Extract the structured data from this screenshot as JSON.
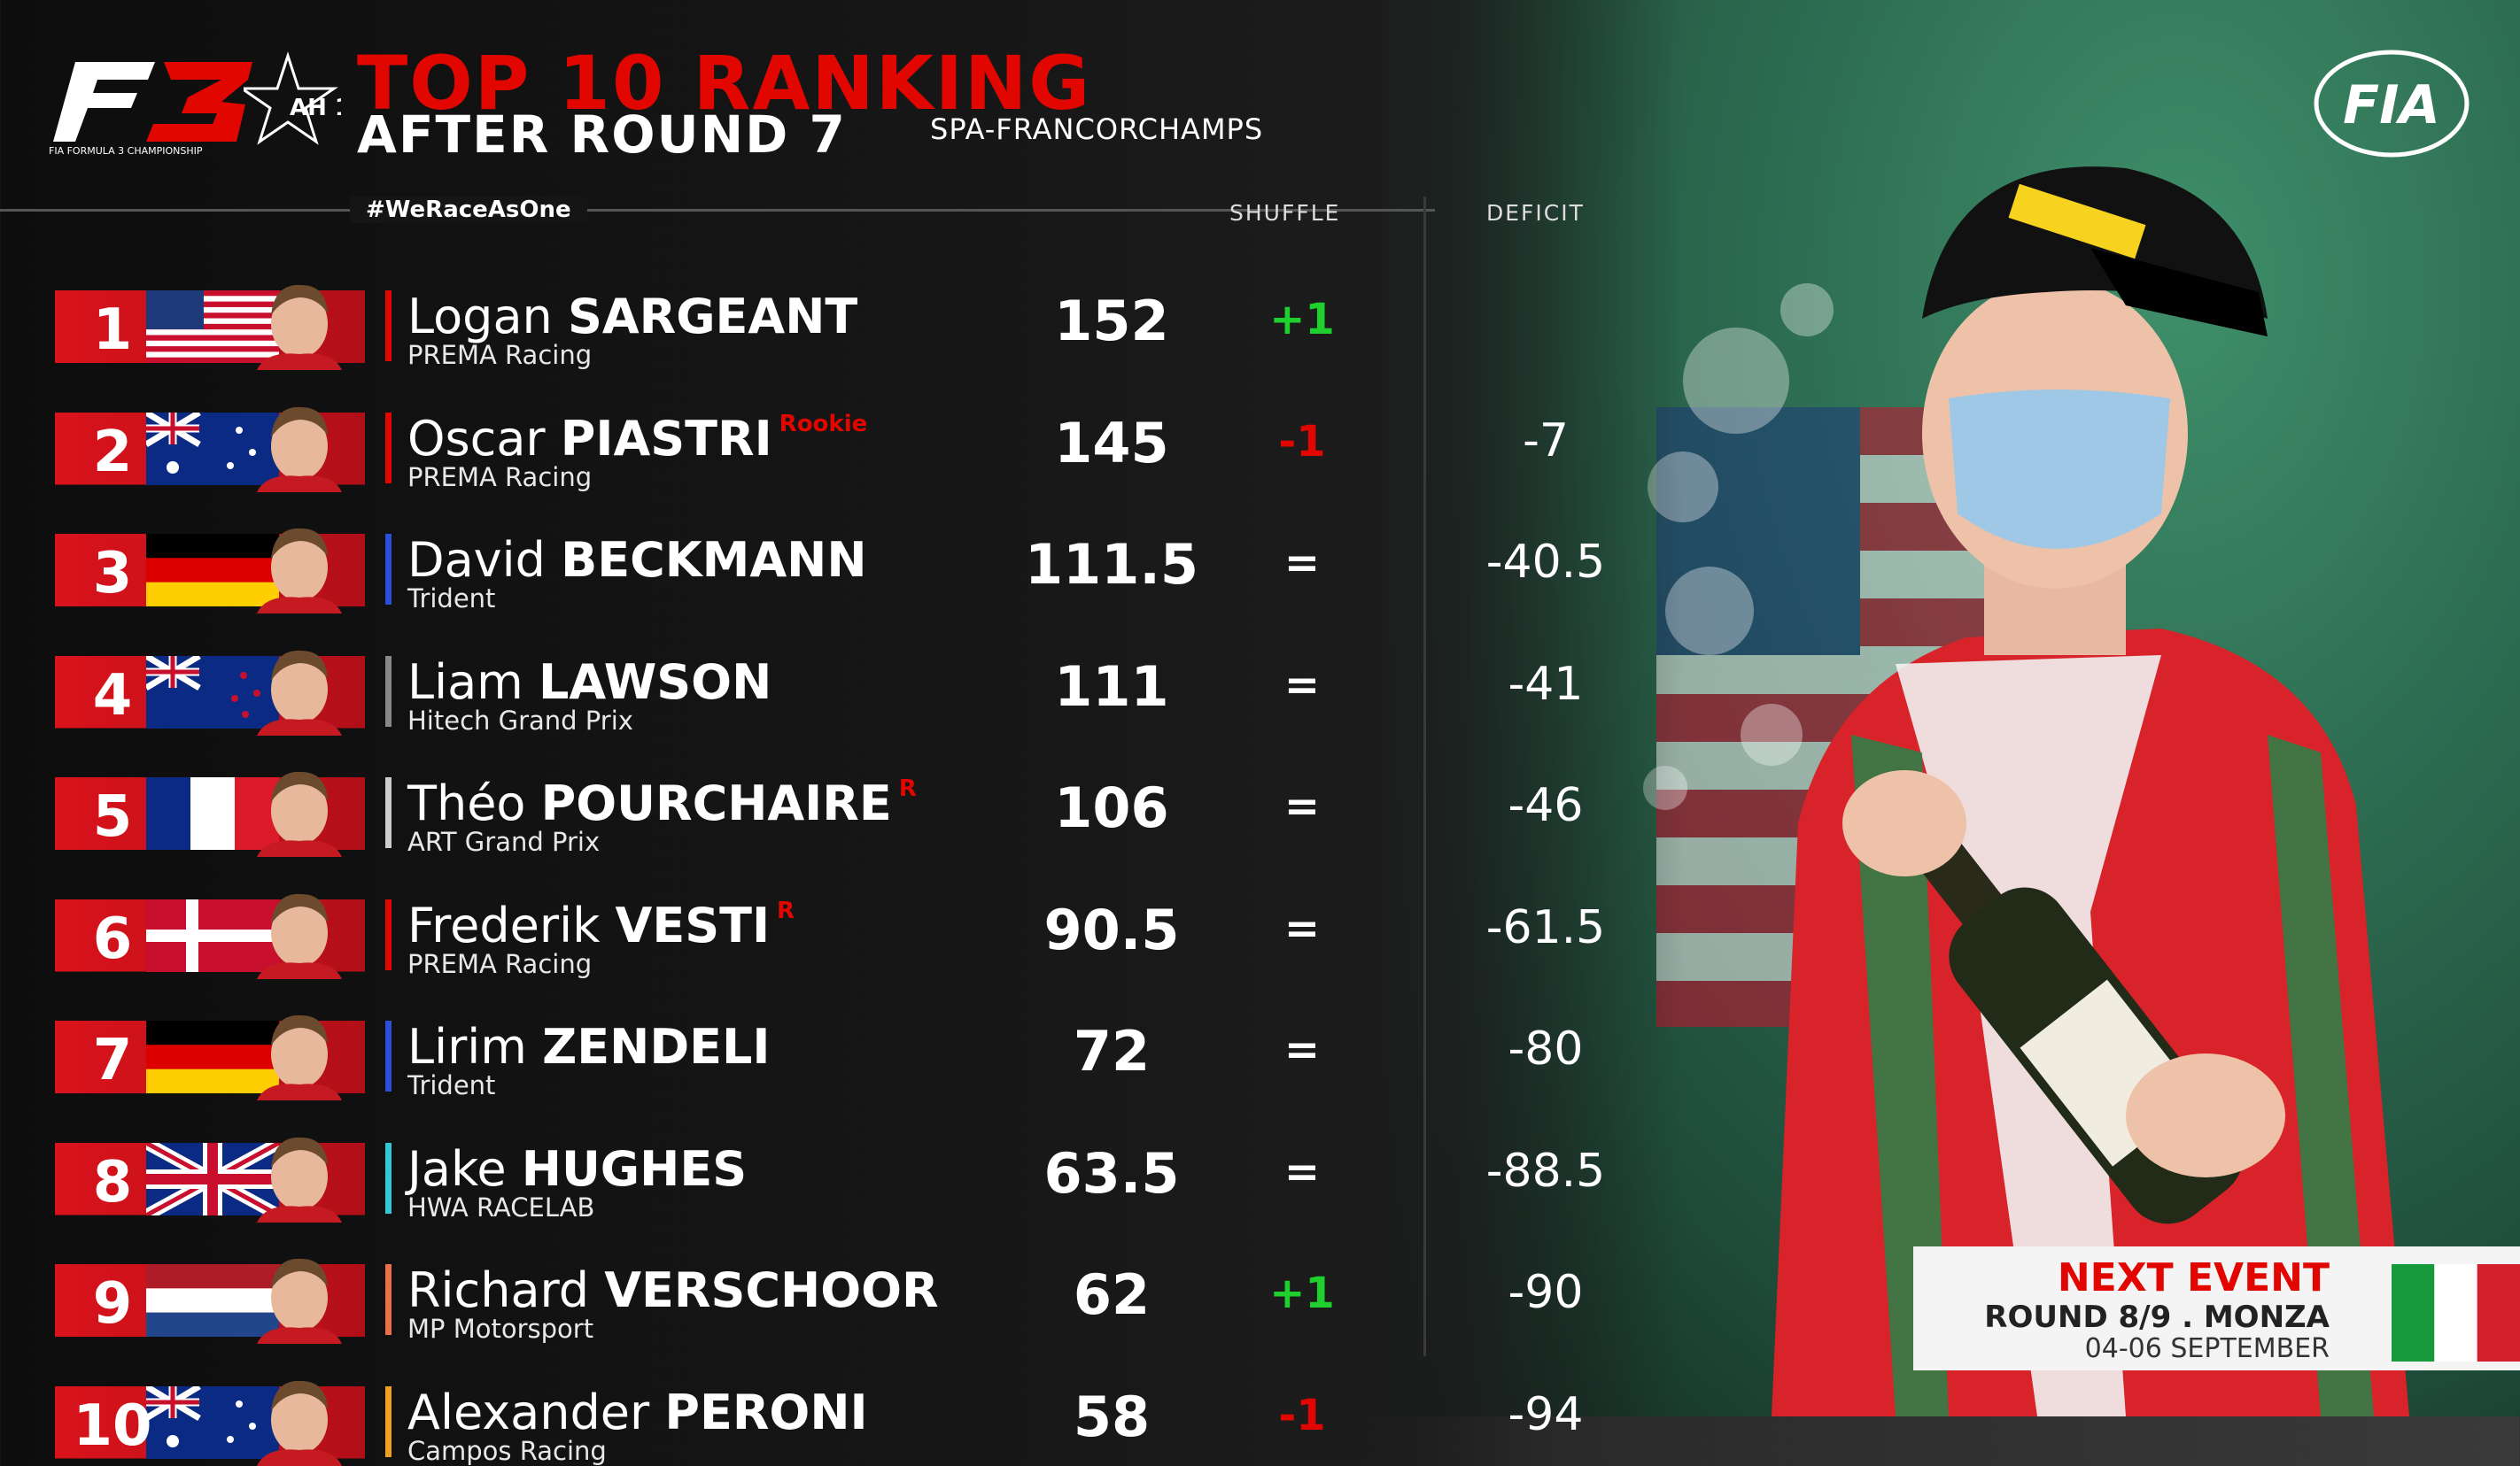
{
  "header": {
    "f3_logo_text": "FIA FORMULA 3 CHAMPIONSHIP",
    "tribute_text": "AH 19",
    "title_line1": "TOP 10 RANKING",
    "title_line2": "AFTER ROUND 7",
    "circuit": "SPA-FRANCORCHAMPS",
    "fia_text": "FIA"
  },
  "table": {
    "hashtag": "#WeRaceAsOne",
    "col_shuffle": "SHUFFLE",
    "col_deficit": "DEFICIT",
    "rows": [
      {
        "pos": "1",
        "first": "Logan",
        "last": "SARGEANT",
        "tag": "",
        "team": "PREMA Racing",
        "points": "152",
        "shuffle": "+1",
        "deficit": "",
        "flag": "usa",
        "team_color": "#e10600",
        "shuffle_color": "#1ecf2e"
      },
      {
        "pos": "2",
        "first": "Oscar",
        "last": "PIASTRI",
        "tag": "Rookie",
        "team": "PREMA Racing",
        "points": "145",
        "shuffle": "-1",
        "deficit": "-7",
        "flag": "australia",
        "team_color": "#e10600",
        "shuffle_color": "#e10600"
      },
      {
        "pos": "3",
        "first": "David",
        "last": "BECKMANN",
        "tag": "",
        "team": "Trident",
        "points": "111.5",
        "shuffle": "=",
        "deficit": "-40.5",
        "flag": "germany",
        "team_color": "#2b4fd8",
        "shuffle_color": "#ffffff"
      },
      {
        "pos": "4",
        "first": "Liam",
        "last": "LAWSON",
        "tag": "",
        "team": "Hitech Grand Prix",
        "points": "111",
        "shuffle": "=",
        "deficit": "-41",
        "flag": "newzealand",
        "team_color": "#888888",
        "shuffle_color": "#ffffff"
      },
      {
        "pos": "5",
        "first": "Théo",
        "last": "POURCHAIRE",
        "tag": "R",
        "team": "ART Grand Prix",
        "points": "106",
        "shuffle": "=",
        "deficit": "-46",
        "flag": "france",
        "team_color": "#cccccc",
        "shuffle_color": "#ffffff"
      },
      {
        "pos": "6",
        "first": "Frederik",
        "last": "VESTI",
        "tag": "R",
        "team": "PREMA Racing",
        "points": "90.5",
        "shuffle": "=",
        "deficit": "-61.5",
        "flag": "denmark",
        "team_color": "#e10600",
        "shuffle_color": "#ffffff"
      },
      {
        "pos": "7",
        "first": "Lirim",
        "last": "ZENDELI",
        "tag": "",
        "team": "Trident",
        "points": "72",
        "shuffle": "=",
        "deficit": "-80",
        "flag": "germany",
        "team_color": "#2b4fd8",
        "shuffle_color": "#ffffff"
      },
      {
        "pos": "8",
        "first": "Jake",
        "last": "HUGHES",
        "tag": "",
        "team": "HWA RACELAB",
        "points": "63.5",
        "shuffle": "=",
        "deficit": "-88.5",
        "flag": "uk",
        "team_color": "#35c7d8",
        "shuffle_color": "#ffffff"
      },
      {
        "pos": "9",
        "first": "Richard",
        "last": "VERSCHOOR",
        "tag": "",
        "team": "MP Motorsport",
        "points": "62",
        "shuffle": "+1",
        "deficit": "-90",
        "flag": "netherlands",
        "team_color": "#e8704a",
        "shuffle_color": "#1ecf2e"
      },
      {
        "pos": "10",
        "first": "Alexander",
        "last": "PERONI",
        "tag": "",
        "team": "Campos Racing",
        "points": "58",
        "shuffle": "-1",
        "deficit": "-94",
        "flag": "australia",
        "team_color": "#f0a020",
        "shuffle_color": "#e10600"
      }
    ]
  },
  "next_event": {
    "title": "NEXT EVENT",
    "round": "ROUND 8/9 . MONZA",
    "dates": "04-06 SEPTEMBER",
    "flag": "italy"
  },
  "colors": {
    "accent": "#e10600",
    "position_box": "#d9131b",
    "background": "#151515",
    "positive": "#1ecf2e"
  }
}
